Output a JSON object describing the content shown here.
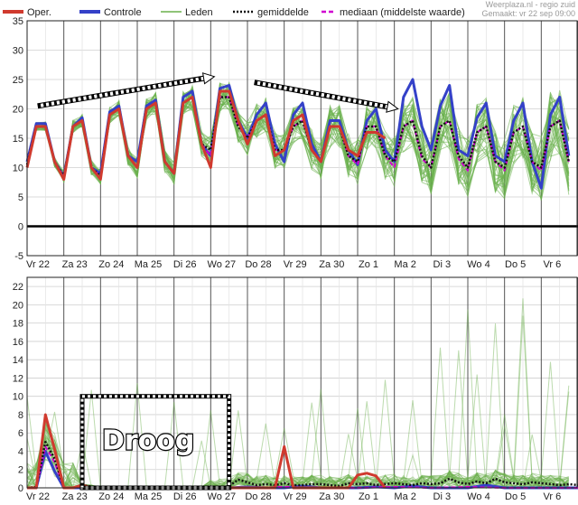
{
  "legend": {
    "oper": "Oper.",
    "controle": "Controle",
    "leden": "Leden",
    "gemiddelde": "gemiddelde",
    "mediaan": "mediaan (middelste waarde)"
  },
  "credit": {
    "line1": "Weerplaza.nl - regio zuid",
    "line2": "Gemaakt: vr 22 sep 09:00"
  },
  "colors": {
    "oper": "#d03a2e",
    "controle": "#3441c8",
    "leden": "#6ab04c",
    "gemiddelde": "#111111",
    "mediaan": "#d000d0",
    "day_line": "#555555",
    "grid": "#cfcfcf"
  },
  "annotation": "Droog",
  "x_labels": [
    "Vr 22",
    "Za 23",
    "Zo 24",
    "Ma 25",
    "Di 26",
    "Wo 27",
    "Do 28",
    "Vr 29",
    "Za 30",
    "Zo 1",
    "Ma 2",
    "Di 3",
    "Wo 4",
    "Do 5",
    "Vr 6"
  ],
  "chart_data": [
    {
      "type": "line",
      "panel": "temperature",
      "ylim": [
        -5,
        35
      ],
      "yticks": [
        -5,
        0,
        5,
        10,
        15,
        20,
        25,
        30,
        35
      ],
      "x_unit": "days",
      "x_range": [
        0,
        15
      ],
      "grid": true,
      "legend_position": "top",
      "trend_arrows": [
        {
          "from": [
            0.3,
            20.5
          ],
          "to": [
            5.1,
            25.5
          ]
        },
        {
          "from": [
            6.2,
            24.5
          ],
          "to": [
            10.1,
            20.0
          ]
        }
      ],
      "series": [
        {
          "name": "Oper.",
          "x": [
            0,
            0.25,
            0.5,
            0.75,
            1,
            1.25,
            1.5,
            1.75,
            2,
            2.25,
            2.5,
            2.75,
            3,
            3.25,
            3.5,
            3.75,
            4,
            4.25,
            4.5,
            4.75,
            5,
            5.25,
            5.5,
            5.75,
            6,
            6.25,
            6.5,
            6.75,
            7,
            7.25,
            7.5,
            7.75,
            8,
            8.25,
            8.5,
            8.75,
            9,
            9.25,
            9.5,
            9.75
          ],
          "y": [
            10,
            17,
            17,
            11,
            8,
            17,
            18,
            10,
            8,
            19,
            20,
            12,
            10,
            20,
            21,
            11,
            9,
            21,
            22,
            14,
            10,
            23,
            23,
            18,
            14,
            18,
            19,
            12,
            13,
            18,
            19,
            13,
            11,
            17,
            17,
            13,
            12,
            16,
            16,
            15
          ]
        },
        {
          "name": "Controle",
          "x": [
            0,
            0.25,
            0.5,
            0.75,
            1,
            1.25,
            1.5,
            1.75,
            2,
            2.25,
            2.5,
            2.75,
            3,
            3.25,
            3.5,
            3.75,
            4,
            4.25,
            4.5,
            4.75,
            5,
            5.25,
            5.5,
            5.75,
            6,
            6.25,
            6.5,
            6.75,
            7,
            7.25,
            7.5,
            7.75,
            8,
            8.25,
            8.5,
            8.75,
            9,
            9.25,
            9.5,
            9.75,
            10,
            10.25,
            10.5,
            10.75,
            11,
            11.25,
            11.5,
            11.75,
            12,
            12.25,
            12.5,
            12.75,
            13,
            13.25,
            13.5,
            13.75,
            14,
            14.25,
            14.5,
            14.75
          ],
          "y": [
            11,
            17.5,
            17.5,
            11,
            8.5,
            17,
            18.5,
            10,
            9,
            19.5,
            20.5,
            12,
            11,
            20.5,
            21.5,
            11,
            9,
            22,
            23,
            14,
            12,
            23.5,
            24,
            18,
            15,
            19,
            21,
            14,
            11,
            19,
            21,
            14,
            11,
            18,
            18,
            13,
            10.5,
            18,
            20,
            13,
            11,
            22,
            25,
            17,
            13,
            20.5,
            24,
            13,
            12,
            18.5,
            21,
            12,
            11,
            18,
            21,
            11,
            6.5,
            19,
            22,
            12
          ]
        },
        {
          "name": "gemiddelde",
          "x": [
            0,
            0.25,
            0.5,
            0.75,
            1,
            1.25,
            1.5,
            1.75,
            2,
            2.25,
            2.5,
            2.75,
            3,
            3.25,
            3.5,
            3.75,
            4,
            4.25,
            4.5,
            4.75,
            5,
            5.25,
            5.5,
            5.75,
            6,
            6.25,
            6.5,
            6.75,
            7,
            7.25,
            7.5,
            7.75,
            8,
            8.25,
            8.5,
            8.75,
            9,
            9.25,
            9.5,
            9.75,
            10,
            10.25,
            10.5,
            10.75,
            11,
            11.25,
            11.5,
            11.75,
            12,
            12.25,
            12.5,
            12.75,
            13,
            13.25,
            13.5,
            13.75,
            14,
            14.25,
            14.5,
            14.75
          ],
          "y": [
            10.5,
            17,
            17,
            11,
            8.5,
            17,
            18,
            10,
            8.5,
            19,
            20,
            12,
            10,
            20,
            21,
            11,
            9,
            21,
            22,
            14,
            13,
            22,
            22,
            17,
            15,
            18,
            19,
            13,
            13,
            17,
            18,
            13,
            11,
            17,
            17,
            12,
            11,
            17,
            17,
            12,
            11,
            17,
            18,
            12,
            10,
            17,
            18,
            12,
            10,
            16,
            17,
            11,
            10,
            16,
            17,
            11,
            10,
            17,
            18,
            11
          ]
        },
        {
          "name": "mediaan (middelste waarde)",
          "x": [
            0,
            0.25,
            0.5,
            0.75,
            1,
            1.25,
            1.5,
            1.75,
            2,
            2.25,
            2.5,
            2.75,
            3,
            3.25,
            3.5,
            3.75,
            4,
            4.25,
            4.5,
            4.75,
            5,
            5.25,
            5.5,
            5.75,
            6,
            6.25,
            6.5,
            6.75,
            7,
            7.25,
            7.5,
            7.75,
            8,
            8.25,
            8.5,
            8.75,
            9,
            9.25,
            9.5,
            9.75,
            10,
            10.25,
            10.5,
            10.75,
            11,
            11.25,
            11.5,
            11.75,
            12,
            12.25,
            12.5,
            12.75,
            13,
            13.25,
            13.5,
            13.75,
            14,
            14.25,
            14.5,
            14.75
          ],
          "y": [
            10.5,
            17,
            17,
            11,
            8.5,
            17,
            18,
            10,
            8.5,
            19,
            20,
            12,
            10,
            20,
            21,
            11,
            9,
            21,
            22,
            14,
            12,
            22,
            22,
            17,
            15,
            18,
            19,
            13,
            13,
            17,
            18,
            13,
            11,
            17,
            17,
            12,
            10.5,
            17,
            17,
            12,
            10,
            17,
            18,
            11.5,
            10,
            17,
            18,
            11.5,
            9.5,
            16,
            17,
            11,
            9.5,
            16,
            17,
            11,
            9.5,
            17,
            18,
            11
          ]
        }
      ]
    },
    {
      "type": "line",
      "panel": "precipitation",
      "ylim": [
        0,
        23
      ],
      "yticks": [
        0,
        2,
        4,
        6,
        8,
        10,
        12,
        14,
        16,
        18,
        20,
        22
      ],
      "x_unit": "days",
      "x_range": [
        0,
        15
      ],
      "grid": true,
      "dry_box": {
        "x": [
          1.5,
          5.5
        ],
        "y": [
          0,
          10
        ]
      },
      "series": [
        {
          "name": "Oper.",
          "x": [
            0,
            0.25,
            0.5,
            0.75,
            1,
            1.25,
            1.5,
            1.75,
            2,
            2.5,
            3,
            3.5,
            4,
            4.5,
            5,
            5.25,
            5.5,
            5.75,
            6,
            6.25,
            6.5,
            6.75,
            7,
            7.25,
            7.5,
            7.75,
            8,
            8.25,
            8.5,
            8.75,
            9,
            9.25,
            9.5,
            9.75
          ],
          "y": [
            0,
            0,
            8,
            4.2,
            0,
            0,
            0.3,
            0,
            0,
            0,
            0,
            0,
            0,
            0,
            0,
            0,
            0,
            0,
            0,
            0,
            0,
            0,
            4.5,
            0,
            0,
            0,
            0,
            0,
            0,
            0,
            1.4,
            1.6,
            1.3,
            0
          ]
        },
        {
          "name": "Controle",
          "x": [
            0,
            0.25,
            0.5,
            0.75,
            1,
            1.25,
            1.5,
            2,
            3,
            4,
            5,
            5.5,
            6,
            6.5,
            7,
            7.5,
            8,
            8.5,
            9,
            9.5,
            10,
            10.5,
            11,
            11.5,
            12,
            12.5,
            13,
            13.5,
            14,
            14.5,
            15
          ],
          "y": [
            0,
            0,
            4,
            1.8,
            0,
            0,
            0,
            0,
            0,
            0,
            0,
            0,
            0.1,
            0,
            0,
            0.2,
            0,
            0,
            0,
            0.1,
            0,
            0.2,
            0,
            0,
            0,
            0.3,
            0,
            0,
            0,
            0,
            0
          ]
        },
        {
          "name": "gemiddelde",
          "x": [
            0,
            0.25,
            0.5,
            0.75,
            1,
            1.25,
            1.5,
            2,
            3,
            4,
            5,
            5.25,
            5.5,
            5.75,
            6,
            6.25,
            6.5,
            6.75,
            7,
            7.25,
            7.5,
            7.75,
            8,
            8.25,
            8.5,
            8.75,
            9,
            9.25,
            9.5,
            9.75,
            10,
            10.25,
            10.5,
            10.75,
            11,
            11.25,
            11.5,
            11.75,
            12,
            12.25,
            12.5,
            12.75,
            13,
            13.25,
            13.5,
            13.75,
            14,
            14.25,
            14.5,
            14.75,
            15
          ],
          "y": [
            0,
            0.1,
            5,
            3.2,
            0,
            0,
            0.3,
            0,
            0,
            0,
            0,
            0,
            0.2,
            0.9,
            0.6,
            0.3,
            0.4,
            0.3,
            0.5,
            0.3,
            0.3,
            0.4,
            0.4,
            0.3,
            0.2,
            0.5,
            0.4,
            0.5,
            0.3,
            0.4,
            0.5,
            0.4,
            0.3,
            0.5,
            0.4,
            0.5,
            1,
            0.6,
            0.4,
            0.7,
            0.5,
            1,
            0.6,
            0.5,
            0.4,
            0.6,
            0.5,
            0.4,
            0.3,
            0.4,
            0.3
          ]
        },
        {
          "name": "mediaan (middelste waarde)",
          "x": [
            0,
            0.25,
            0.5,
            0.75,
            1,
            1.25,
            1.5,
            2,
            3,
            4,
            5,
            6,
            7,
            8,
            9,
            10,
            11,
            12,
            13,
            14,
            15
          ],
          "y": [
            0,
            0,
            4.5,
            2.8,
            0,
            0,
            0.1,
            0,
            0,
            0,
            0,
            0,
            0.1,
            0,
            0,
            0.1,
            0,
            0.1,
            0,
            0,
            0
          ]
        }
      ]
    }
  ]
}
